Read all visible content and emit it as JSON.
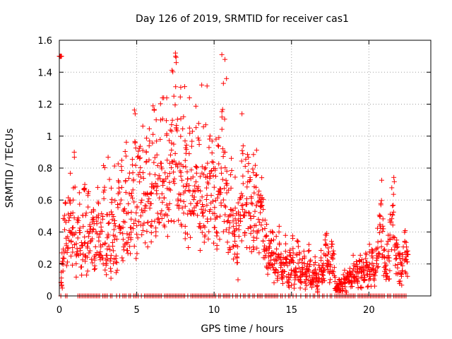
{
  "chart_data": {
    "type": "scatter",
    "title": "Day 126 of 2019, SRMTID for receiver cas1",
    "xlabel": "GPS time / hours",
    "ylabel": "SRMTID / TECUs",
    "xlim": [
      0,
      24
    ],
    "ylim": [
      0,
      1.6
    ],
    "xticks": [
      0,
      5,
      10,
      15,
      20
    ],
    "yticks": [
      0,
      0.2,
      0.4,
      0.6,
      0.8,
      1,
      1.2,
      1.4,
      1.6
    ],
    "xtick_labels": [
      "0",
      "5",
      "10",
      "15",
      "20"
    ],
    "ytick_labels": [
      "0",
      "0.2",
      "0.4",
      "0.6",
      "0.8",
      "1",
      "1.2",
      "1.4",
      "1.6"
    ],
    "grid": true,
    "marker": "+",
    "color": "#ff0000",
    "series": [
      {
        "name": "SRMTID",
        "x": [
          0.05,
          0.1,
          0.15,
          0.2,
          0.3,
          0.4,
          0.5,
          0.6,
          0.7,
          0.8,
          0.9,
          1.0,
          1.1,
          1.2,
          1.3,
          1.4,
          1.5,
          1.6,
          1.7,
          1.8,
          1.9,
          2.0,
          2.1,
          2.2,
          2.3,
          2.4,
          2.5,
          2.6,
          2.7,
          2.8,
          2.9,
          3.0,
          3.1,
          3.2,
          3.3,
          3.4,
          3.5,
          3.6,
          3.7,
          3.8,
          3.9,
          4.0,
          4.1,
          4.2,
          4.3,
          4.4,
          4.5,
          4.6,
          4.7,
          4.8,
          4.9,
          5.0,
          5.1,
          5.2,
          5.3,
          5.4,
          5.5,
          5.6,
          5.7,
          5.8,
          5.9,
          6.0,
          6.1,
          6.2,
          6.3,
          6.4,
          6.5,
          6.6,
          6.7,
          6.8,
          6.9,
          7.0,
          7.1,
          7.2,
          7.3,
          7.4,
          7.5,
          7.6,
          7.7,
          7.8,
          7.9,
          8.0,
          8.1,
          8.2,
          8.3,
          8.4,
          8.5,
          8.6,
          8.7,
          8.8,
          8.9,
          9.0,
          9.1,
          9.2,
          9.3,
          9.4,
          9.5,
          9.6,
          9.7,
          9.8,
          9.9,
          10.0,
          10.1,
          10.2,
          10.3,
          10.4,
          10.5,
          10.6,
          10.7,
          10.8,
          10.9,
          11.0,
          11.1,
          11.2,
          11.3,
          11.4,
          11.5,
          11.6,
          11.7,
          11.8,
          11.9,
          12.0,
          12.1,
          12.2,
          12.3,
          12.4,
          12.5,
          12.6,
          12.7,
          12.8,
          12.9,
          13.0,
          13.1,
          13.2,
          13.3,
          13.4,
          13.5,
          13.6,
          13.7,
          13.8,
          13.9,
          14.0,
          14.1,
          14.2,
          14.3,
          14.4,
          14.5,
          14.6,
          14.7,
          14.8,
          14.9,
          15.0,
          15.1,
          15.2,
          15.3,
          15.4,
          15.5,
          15.6,
          15.7,
          15.8,
          15.9,
          16.0,
          16.1,
          16.2,
          16.3,
          16.4,
          16.5,
          16.6,
          16.7,
          16.8,
          16.9,
          17.0,
          17.1,
          17.2,
          17.3,
          17.4,
          17.5,
          17.6,
          17.7,
          17.8,
          17.9,
          18.0,
          18.1,
          18.2,
          18.3,
          18.4,
          18.5,
          18.6,
          18.7,
          18.8,
          18.9,
          19.0,
          19.1,
          19.2,
          19.3,
          19.4,
          19.5,
          19.6,
          19.7,
          19.8,
          19.9,
          20.0,
          20.1,
          20.2,
          20.3,
          20.4,
          20.5,
          20.6,
          20.7,
          20.8,
          20.9,
          21.0,
          21.1,
          21.2,
          21.3,
          21.4,
          21.5,
          21.6,
          21.7,
          21.8,
          21.9,
          22.0,
          22.1,
          22.2,
          22.3,
          22.4,
          22.5,
          22.6,
          22.7,
          0.1,
          0.2,
          0.35,
          0.45,
          0.25,
          0.4,
          0.55,
          0.3,
          0.5,
          0.65,
          0.22,
          0.33,
          0.48,
          0.29,
          0.41,
          0.52,
          0.38,
          0.27,
          0.46,
          0.31,
          0.39,
          0.44,
          0.28,
          0.36,
          0.49,
          0.25,
          0.42,
          0.34,
          0.57,
          0.21,
          0.4,
          0.62,
          0.18,
          0.47,
          0.35,
          0.55,
          0.3,
          0.6,
          0.45,
          0.72,
          0.38,
          0.5,
          0.66,
          0.42,
          0.58,
          0.35,
          0.7,
          0.52,
          0.8,
          0.44,
          0.62,
          0.9,
          0.55,
          0.75,
          0.48,
          0.68,
          0.6,
          0.82,
          0.5,
          0.72,
          0.95,
          0.62,
          0.78,
          0.55,
          0.88,
          0.7,
          1.0,
          0.65,
          0.85,
          0.58,
          0.92,
          0.75,
          1.1,
          0.68,
          1.2,
          0.8,
          0.6,
          0.95,
          0.72,
          0.88,
          0.65,
          0.78,
          0.55,
          0.9,
          0.62,
          0.7,
          0.5,
          0.85,
          0.6,
          0.75,
          0.52,
          0.68,
          0.8,
          0.58,
          0.95,
          0.65,
          0.72,
          0.55,
          0.82,
          0.6,
          0.7,
          0.5,
          0.88,
          0.62,
          1.0,
          0.68,
          0.78,
          0.55,
          0.45,
          0.35,
          0.6,
          0.4,
          0.3,
          0.5,
          0.25,
          0.45,
          0.55,
          0.65,
          0.75,
          0.6,
          0.5,
          0.7,
          0.55,
          0.45,
          0.6,
          0.5,
          0.65,
          0.55,
          0.48,
          0.58,
          0.52,
          0.45,
          0.35,
          0.3,
          0.25,
          0.3,
          0.22,
          0.28,
          0.2,
          0.25,
          0.18,
          0.3,
          0.22,
          0.15,
          0.2,
          0.26,
          0.18,
          0.12,
          0.22,
          0.16,
          0.28,
          0.14,
          0.2,
          0.24,
          0.18,
          0.12,
          0.16,
          0.22,
          0.1,
          0.15,
          0.2,
          0.14,
          0.08,
          0.12,
          0.18,
          0.1,
          0.06,
          0.12,
          0.2,
          0.14,
          0.18,
          0.25,
          0.3,
          0.22,
          0.16,
          0.28,
          0.2,
          0.1,
          0.05,
          0.04,
          0.06,
          0.08,
          0.05,
          0.1,
          0.06,
          0.12,
          0.08,
          0.14,
          0.1,
          0.16,
          0.12,
          0.18,
          0.14,
          0.2,
          0.12,
          0.16,
          0.1,
          0.18,
          0.14,
          0.2,
          0.12,
          0.22,
          0.16,
          0.14,
          0.24,
          0.3,
          0.4,
          0.5,
          0.35,
          0.2,
          0.15,
          0.25,
          0.2,
          0.35,
          0.45,
          0.55,
          0.3,
          0.25,
          0.2,
          0.18,
          0.15,
          0.22,
          0.3,
          0.25,
          0.2,
          0.15
        ]
      }
    ],
    "zero_band_x": [
      0.1,
      0.4,
      0.5,
      1.2,
      1.3,
      1.4,
      1.5,
      1.6,
      1.7,
      1.8,
      1.9,
      2.0,
      2.1,
      2.2,
      2.3,
      2.4,
      2.5,
      2.6,
      2.8,
      2.9,
      3.0,
      3.1,
      3.3,
      3.4,
      3.7,
      3.9,
      4.1,
      4.2,
      4.3,
      4.5,
      4.6,
      4.8,
      4.9,
      5.0,
      5.1,
      5.3,
      5.5,
      5.6,
      5.7,
      5.8,
      5.9,
      6.0,
      6.1,
      6.2,
      6.3,
      6.4,
      6.5,
      6.6,
      6.8,
      6.9,
      7.0,
      7.1,
      7.2,
      7.3,
      7.4,
      7.5,
      7.6,
      7.7,
      7.8,
      7.9,
      8.0,
      8.1,
      8.3,
      8.5,
      8.6,
      8.7,
      8.8,
      8.9,
      9.0,
      9.1,
      9.2,
      9.3,
      9.4,
      9.5,
      9.6,
      9.7,
      9.8,
      9.9,
      10.0,
      10.1,
      10.3,
      10.4,
      10.6,
      10.7,
      10.8,
      10.9,
      11.0,
      11.2,
      11.4,
      11.5,
      11.7,
      11.9,
      12.0,
      12.2,
      12.3,
      12.5,
      12.6,
      12.8,
      12.9,
      13.0,
      13.1,
      13.3,
      13.4,
      13.5,
      13.6,
      13.7,
      13.8,
      13.9,
      14.0,
      14.1,
      14.3,
      14.4,
      14.6,
      14.8,
      14.9,
      15.1,
      15.3,
      15.6,
      15.9,
      16.0,
      16.2,
      16.4,
      16.5,
      16.7,
      16.8,
      17.0,
      17.1,
      17.3,
      17.5,
      17.6,
      17.8,
      17.9,
      18.0,
      18.1,
      18.2,
      18.3,
      18.4,
      18.5,
      18.6,
      18.7,
      18.8,
      18.9,
      19.0,
      19.1,
      19.3,
      19.4,
      19.5,
      19.6,
      19.7,
      19.8,
      19.9,
      20.0,
      20.1,
      20.2,
      20.3,
      20.4,
      20.5,
      20.6,
      20.7,
      20.8,
      20.9,
      21.0,
      21.2,
      21.3,
      21.4,
      21.6,
      21.7,
      21.8,
      21.9,
      22.0,
      22.1,
      22.2,
      22.3,
      22.4
    ]
  }
}
